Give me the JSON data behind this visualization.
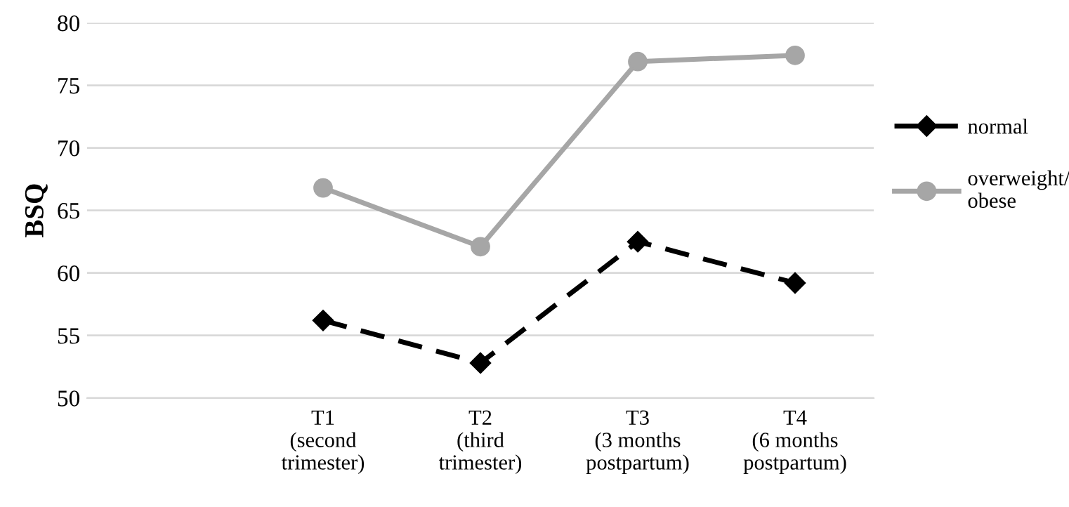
{
  "chart_data": {
    "type": "line",
    "ylabel": "BSQ",
    "categories": [
      null,
      "T1\n(second\ntrimester)",
      "T2\n(third\ntrimester)",
      "T3\n(3 months\npostpartum)",
      "T4\n(6 months\npostpartum)"
    ],
    "series": [
      {
        "name": "normal",
        "color": "#000000",
        "marker": "diamond",
        "line_style": "dashed",
        "values": [
          null,
          56.2,
          52.8,
          62.5,
          59.2
        ]
      },
      {
        "name": "overweight/\nobese",
        "color": "#a6a6a6",
        "marker": "circle",
        "line_style": "solid",
        "values": [
          null,
          66.8,
          62.1,
          76.9,
          77.4
        ]
      }
    ],
    "ylim": [
      50,
      80
    ],
    "yticks": [
      50,
      55,
      60,
      65,
      70,
      75,
      80
    ],
    "grid": "y",
    "legend": "right"
  }
}
